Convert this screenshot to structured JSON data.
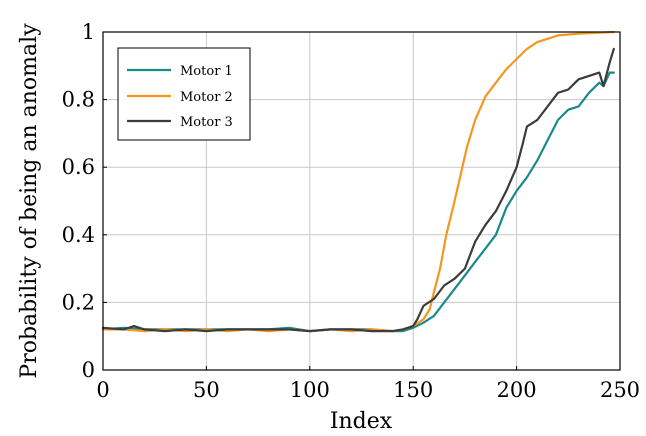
{
  "chart_data": {
    "type": "line",
    "title": "",
    "xlabel": "Index",
    "ylabel": "Probability of being an anomaly",
    "xlim": [
      0,
      250
    ],
    "ylim": [
      0,
      1
    ],
    "x_ticks": [
      0,
      50,
      100,
      150,
      200,
      250
    ],
    "y_ticks": [
      0,
      0.2,
      0.4,
      0.6,
      0.8,
      1
    ],
    "y_tick_labels": [
      "0",
      "0.2",
      "0.4",
      "0.6",
      "0.8",
      "1"
    ],
    "grid": true,
    "legend_position": "top-left",
    "series": [
      {
        "name": "Motor 1",
        "color": "#1a8a8a",
        "points": [
          [
            0,
            0.12
          ],
          [
            10,
            0.125
          ],
          [
            20,
            0.12
          ],
          [
            30,
            0.12
          ],
          [
            40,
            0.12
          ],
          [
            50,
            0.12
          ],
          [
            60,
            0.12
          ],
          [
            70,
            0.12
          ],
          [
            80,
            0.12
          ],
          [
            90,
            0.125
          ],
          [
            100,
            0.115
          ],
          [
            110,
            0.12
          ],
          [
            120,
            0.12
          ],
          [
            130,
            0.12
          ],
          [
            140,
            0.115
          ],
          [
            145,
            0.115
          ],
          [
            150,
            0.125
          ],
          [
            155,
            0.14
          ],
          [
            160,
            0.16
          ],
          [
            165,
            0.2
          ],
          [
            170,
            0.24
          ],
          [
            175,
            0.28
          ],
          [
            180,
            0.32
          ],
          [
            185,
            0.36
          ],
          [
            190,
            0.4
          ],
          [
            195,
            0.48
          ],
          [
            200,
            0.53
          ],
          [
            205,
            0.57
          ],
          [
            210,
            0.62
          ],
          [
            215,
            0.68
          ],
          [
            220,
            0.74
          ],
          [
            225,
            0.77
          ],
          [
            230,
            0.78
          ],
          [
            235,
            0.82
          ],
          [
            240,
            0.85
          ],
          [
            242,
            0.84
          ],
          [
            245,
            0.88
          ],
          [
            247,
            0.88
          ]
        ]
      },
      {
        "name": "Motor 2",
        "color": "#f5961e",
        "points": [
          [
            0,
            0.12
          ],
          [
            10,
            0.12
          ],
          [
            20,
            0.115
          ],
          [
            30,
            0.12
          ],
          [
            40,
            0.115
          ],
          [
            50,
            0.12
          ],
          [
            60,
            0.115
          ],
          [
            70,
            0.12
          ],
          [
            80,
            0.115
          ],
          [
            90,
            0.12
          ],
          [
            100,
            0.115
          ],
          [
            110,
            0.12
          ],
          [
            120,
            0.115
          ],
          [
            130,
            0.12
          ],
          [
            140,
            0.115
          ],
          [
            145,
            0.12
          ],
          [
            150,
            0.13
          ],
          [
            155,
            0.15
          ],
          [
            158,
            0.18
          ],
          [
            160,
            0.23
          ],
          [
            163,
            0.3
          ],
          [
            166,
            0.4
          ],
          [
            170,
            0.5
          ],
          [
            173,
            0.58
          ],
          [
            176,
            0.66
          ],
          [
            180,
            0.74
          ],
          [
            185,
            0.81
          ],
          [
            190,
            0.85
          ],
          [
            195,
            0.89
          ],
          [
            200,
            0.92
          ],
          [
            205,
            0.95
          ],
          [
            210,
            0.97
          ],
          [
            215,
            0.98
          ],
          [
            220,
            0.99
          ],
          [
            230,
            0.995
          ],
          [
            240,
            0.998
          ],
          [
            247,
            1.0
          ]
        ]
      },
      {
        "name": "Motor 3",
        "color": "#3c3c3c",
        "points": [
          [
            0,
            0.125
          ],
          [
            10,
            0.12
          ],
          [
            15,
            0.13
          ],
          [
            20,
            0.12
          ],
          [
            30,
            0.115
          ],
          [
            40,
            0.12
          ],
          [
            50,
            0.115
          ],
          [
            60,
            0.12
          ],
          [
            70,
            0.12
          ],
          [
            80,
            0.12
          ],
          [
            90,
            0.12
          ],
          [
            100,
            0.115
          ],
          [
            110,
            0.12
          ],
          [
            120,
            0.12
          ],
          [
            130,
            0.115
          ],
          [
            140,
            0.115
          ],
          [
            145,
            0.12
          ],
          [
            150,
            0.13
          ],
          [
            152,
            0.15
          ],
          [
            155,
            0.19
          ],
          [
            160,
            0.21
          ],
          [
            165,
            0.25
          ],
          [
            170,
            0.27
          ],
          [
            175,
            0.3
          ],
          [
            180,
            0.38
          ],
          [
            185,
            0.43
          ],
          [
            190,
            0.47
          ],
          [
            195,
            0.53
          ],
          [
            200,
            0.6
          ],
          [
            203,
            0.67
          ],
          [
            205,
            0.72
          ],
          [
            210,
            0.74
          ],
          [
            215,
            0.78
          ],
          [
            220,
            0.82
          ],
          [
            225,
            0.83
          ],
          [
            230,
            0.86
          ],
          [
            235,
            0.87
          ],
          [
            240,
            0.88
          ],
          [
            242,
            0.84
          ],
          [
            245,
            0.91
          ],
          [
            247,
            0.95
          ]
        ]
      }
    ]
  }
}
